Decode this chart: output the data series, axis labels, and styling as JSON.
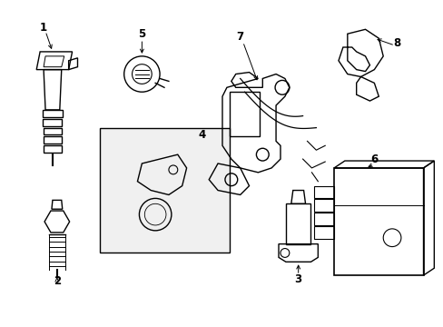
{
  "background_color": "#ffffff",
  "line_color": "#000000",
  "fig_width": 4.89,
  "fig_height": 3.6,
  "dpi": 100,
  "lw": 1.0,
  "annotation_fontsize": 8.5
}
